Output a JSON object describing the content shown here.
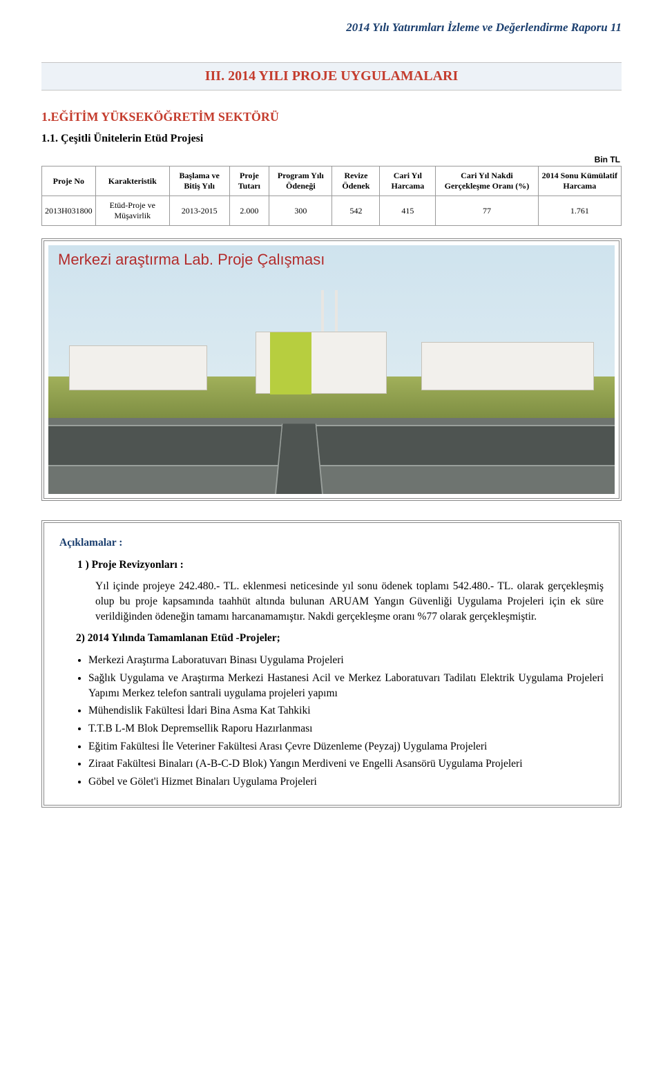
{
  "header": "2014 Yılı Yatırımları İzleme ve Değerlendirme Raporu 11",
  "section_title": "III. 2014 YILI PROJE UYGULAMALARI",
  "sector_title": "1.EĞİTİM YÜKSEKÖĞRETİM SEKTÖRÜ",
  "project_title": "1.1. Çeşitli Ünitelerin Etüd Projesi",
  "table": {
    "unit_label": "Bin TL",
    "columns": [
      "Proje No",
      "Karakteristik",
      "Başlama ve Bitiş Yılı",
      "Proje Tutarı",
      "Program Yılı Ödeneği",
      "Revize Ödenek",
      "Cari Yıl Harcama",
      "Cari Yıl Nakdi Gerçekleşme Oranı (%)",
      "2014 Sonu Kümülatif Harcama"
    ],
    "row": {
      "proje_no": "2013H031800",
      "karakteristik": "Etüd-Proje ve Müşavirlik",
      "baslama_bitis": "2013-2015",
      "proje_tutari": "2.000",
      "program_odenegi": "300",
      "revize_odenek": "542",
      "cari_harcama": "415",
      "gerceklesme_orani": "77",
      "kumulatif": "1.761"
    }
  },
  "rendering_caption": "Merkezi araştırma Lab. Proje Çalışması",
  "notes": {
    "heading_main": "Açıklamalar :",
    "heading_rev": "1 ) Proje Revizyonları :",
    "rev_text": "Yıl içinde projeye 242.480.- TL. eklenmesi neticesinde yıl sonu ödenek toplamı 542.480.- TL. olarak gerçekleşmiş olup bu proje kapsamında taahhüt altında bulunan ARUAM Yangın Güvenliği Uygulama Projeleri için ek süre verildiğinden ödeneğin tamamı harcanamamıştır. Nakdi gerçekleşme oranı %77 olarak gerçekleşmiştir.",
    "heading_completed": "2) 2014 Yılında Tamamlanan Etüd -Projeler;",
    "items": [
      "Merkezi Araştırma Laboratuvarı Binası Uygulama Projeleri",
      "Sağlık Uygulama ve Araştırma Merkezi Hastanesi Acil ve Merkez Laboratuvarı Tadilatı Elektrik Uygulama Projeleri Yapımı Merkez telefon santrali uygulama projeleri yapımı",
      "Mühendislik Fakültesi İdari Bina Asma Kat Tahkiki",
      "T.T.B L-M Blok Depremsellik Raporu Hazırlanması",
      "Eğitim Fakültesi İle Veteriner Fakültesi Arası Çevre Düzenleme (Peyzaj) Uygulama Projeleri",
      "Ziraat Fakültesi Binaları (A-B-C-D Blok) Yangın Merdiveni ve Engelli Asansörü Uygulama Projeleri",
      "Göbel ve Gölet'i Hizmet Binaları Uygulama Projeleri"
    ]
  }
}
